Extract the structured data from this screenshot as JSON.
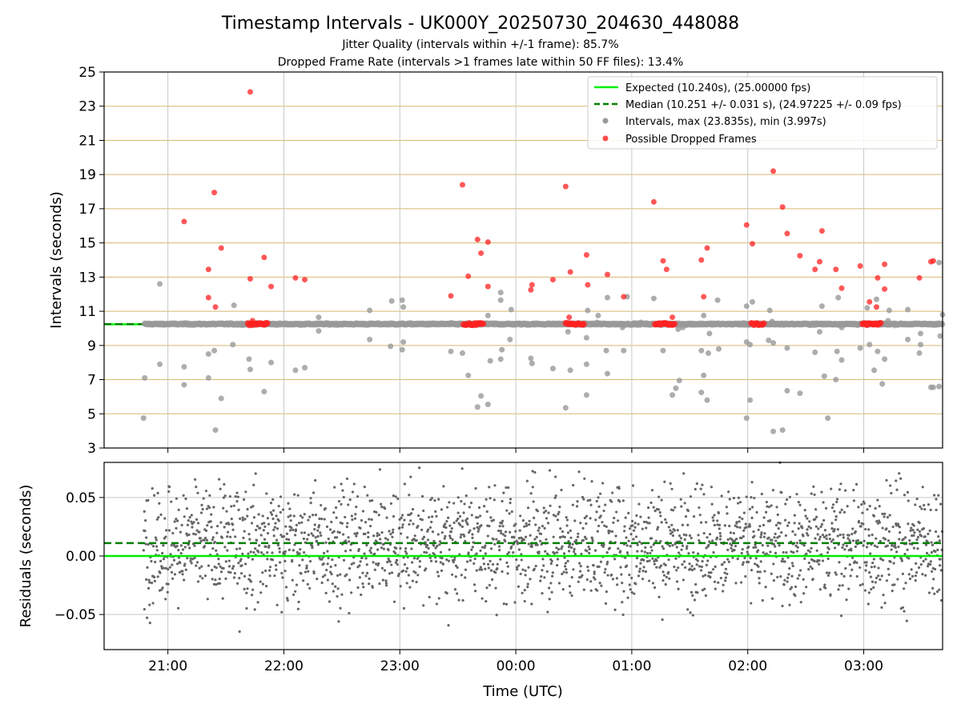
{
  "title": "Timestamp Intervals - UK000Y_20250730_204630_448088",
  "subtitle1": "Jitter Quality (intervals within +/-1 frame): 85.7%",
  "subtitle2": "Dropped Frame Rate (intervals >1 frames late within 50 FF files): 13.4%",
  "colors": {
    "expected": "#00ee00",
    "median": "#007f00",
    "intervals": "#999999",
    "dropped": "#ff2020",
    "residual": "#666666",
    "hgrid": "#d8b870",
    "vgrid": "#c8c8c8"
  },
  "chart_data": [
    {
      "type": "scatter",
      "ylabel": "Intervals (seconds)",
      "ylim": [
        3,
        25
      ],
      "yticks": [
        3,
        5,
        7,
        9,
        11,
        13,
        15,
        17,
        19,
        21,
        23,
        25
      ],
      "xlim_hours": [
        20.45,
        27.68
      ],
      "expected_interval": 10.24,
      "median_interval": 10.251,
      "legend_position": "top-right",
      "legend": [
        "Expected (10.240s), (25.00000 fps)",
        "Median (10.251 +/- 0.031 s), (24.97225 +/- 0.09 fps)",
        "Intervals, max (23.835s), min (3.997s)",
        "Possible Dropped Frames"
      ],
      "intervals_outliers": [
        [
          20.79,
          4.75
        ],
        [
          20.8,
          7.1
        ],
        [
          20.93,
          7.9
        ],
        [
          20.93,
          12.6
        ],
        [
          21.14,
          7.75
        ],
        [
          21.14,
          6.7
        ],
        [
          21.35,
          8.5
        ],
        [
          21.35,
          7.1
        ],
        [
          21.4,
          8.7
        ],
        [
          21.41,
          4.05
        ],
        [
          21.46,
          5.9
        ],
        [
          21.56,
          9.05
        ],
        [
          21.57,
          11.35
        ],
        [
          21.7,
          8.2
        ],
        [
          21.71,
          7.6
        ],
        [
          21.83,
          6.3
        ],
        [
          21.89,
          8.0
        ],
        [
          22.1,
          7.55
        ],
        [
          22.18,
          7.7
        ],
        [
          22.3,
          10.65
        ],
        [
          22.3,
          9.85
        ],
        [
          22.74,
          9.35
        ],
        [
          22.74,
          11.05
        ],
        [
          22.93,
          11.6
        ],
        [
          22.92,
          8.95
        ],
        [
          23.02,
          11.65
        ],
        [
          23.03,
          11.25
        ],
        [
          23.03,
          9.2
        ],
        [
          23.02,
          8.75
        ],
        [
          23.44,
          8.65
        ],
        [
          23.54,
          8.55
        ],
        [
          23.59,
          7.25
        ],
        [
          23.67,
          5.4
        ],
        [
          23.7,
          6.05
        ],
        [
          23.76,
          5.55
        ],
        [
          23.78,
          8.1
        ],
        [
          23.76,
          10.75
        ],
        [
          23.87,
          8.2
        ],
        [
          23.88,
          8.75
        ],
        [
          23.87,
          12.1
        ],
        [
          23.87,
          11.65
        ],
        [
          23.95,
          9.35
        ],
        [
          23.96,
          11.1
        ],
        [
          24.13,
          8.25
        ],
        [
          24.14,
          7.95
        ],
        [
          24.32,
          7.65
        ],
        [
          24.43,
          5.35
        ],
        [
          24.45,
          9.8
        ],
        [
          24.47,
          7.55
        ],
        [
          24.61,
          6.1
        ],
        [
          24.61,
          7.9
        ],
        [
          24.61,
          9.45
        ],
        [
          24.62,
          11.05
        ],
        [
          24.7,
          10.35
        ],
        [
          24.71,
          10.75
        ],
        [
          24.78,
          8.7
        ],
        [
          24.79,
          11.8
        ],
        [
          24.79,
          7.35
        ],
        [
          24.92,
          10.05
        ],
        [
          24.93,
          8.7
        ],
        [
          24.96,
          11.85
        ],
        [
          25.08,
          10.35
        ],
        [
          25.19,
          11.75
        ],
        [
          25.27,
          8.7
        ],
        [
          25.35,
          6.1
        ],
        [
          25.38,
          6.5
        ],
        [
          25.41,
          6.95
        ],
        [
          25.4,
          9.95
        ],
        [
          25.44,
          10.05
        ],
        [
          25.48,
          10.2
        ],
        [
          25.6,
          8.7
        ],
        [
          25.6,
          6.25
        ],
        [
          25.62,
          7.25
        ],
        [
          25.62,
          10.75
        ],
        [
          25.65,
          5.8
        ],
        [
          25.66,
          8.55
        ],
        [
          25.67,
          9.7
        ],
        [
          25.74,
          11.65
        ],
        [
          25.75,
          8.8
        ],
        [
          25.99,
          4.75
        ],
        [
          25.99,
          9.2
        ],
        [
          25.99,
          11.3
        ],
        [
          26.02,
          9.05
        ],
        [
          26.02,
          5.8
        ],
        [
          26.04,
          11.55
        ],
        [
          26.18,
          9.3
        ],
        [
          26.19,
          11.05
        ],
        [
          26.21,
          10.4
        ],
        [
          26.22,
          3.97
        ],
        [
          26.22,
          9.15
        ],
        [
          26.3,
          4.05
        ],
        [
          26.34,
          8.85
        ],
        [
          26.34,
          6.35
        ],
        [
          26.45,
          6.2
        ],
        [
          26.58,
          8.6
        ],
        [
          26.62,
          9.8
        ],
        [
          26.64,
          11.3
        ],
        [
          26.65,
          10.25
        ],
        [
          26.66,
          7.2
        ],
        [
          26.69,
          4.75
        ],
        [
          26.76,
          7.0
        ],
        [
          26.77,
          8.65
        ],
        [
          26.78,
          11.8
        ],
        [
          26.81,
          10.05
        ],
        [
          26.81,
          8.15
        ],
        [
          26.97,
          8.85
        ],
        [
          27.05,
          9.05
        ],
        [
          27.03,
          11.2
        ],
        [
          27.11,
          11.7
        ],
        [
          27.09,
          7.55
        ],
        [
          27.12,
          8.65
        ],
        [
          27.16,
          6.75
        ],
        [
          27.18,
          8.2
        ],
        [
          27.22,
          11.05
        ],
        [
          27.21,
          10.45
        ],
        [
          27.38,
          9.35
        ],
        [
          27.38,
          11.1
        ],
        [
          27.48,
          8.55
        ],
        [
          27.49,
          9.05
        ],
        [
          27.49,
          9.7
        ],
        [
          27.58,
          6.55
        ],
        [
          27.6,
          6.55
        ],
        [
          27.65,
          6.6
        ],
        [
          27.66,
          9.55
        ],
        [
          27.68,
          10.8
        ],
        [
          27.65,
          13.85
        ]
      ],
      "dropped_frames": [
        [
          21.14,
          16.25
        ],
        [
          21.35,
          13.45
        ],
        [
          21.35,
          11.8
        ],
        [
          21.4,
          17.95
        ],
        [
          21.41,
          11.25
        ],
        [
          21.46,
          14.7
        ],
        [
          21.71,
          23.835
        ],
        [
          21.71,
          12.9
        ],
        [
          21.83,
          14.15
        ],
        [
          21.89,
          12.45
        ],
        [
          22.1,
          12.95
        ],
        [
          22.18,
          12.85
        ],
        [
          23.44,
          11.9
        ],
        [
          23.54,
          18.4
        ],
        [
          23.59,
          13.05
        ],
        [
          23.67,
          15.2
        ],
        [
          23.7,
          14.4
        ],
        [
          23.76,
          15.05
        ],
        [
          23.76,
          12.45
        ],
        [
          24.13,
          12.25
        ],
        [
          24.14,
          12.55
        ],
        [
          24.32,
          12.85
        ],
        [
          24.43,
          18.3
        ],
        [
          24.47,
          13.3
        ],
        [
          24.62,
          12.55
        ],
        [
          24.61,
          14.3
        ],
        [
          24.79,
          13.15
        ],
        [
          24.93,
          11.85
        ],
        [
          25.19,
          17.4
        ],
        [
          25.27,
          13.95
        ],
        [
          25.3,
          13.45
        ],
        [
          25.35,
          10.65
        ],
        [
          25.6,
          14.0
        ],
        [
          25.62,
          11.85
        ],
        [
          25.65,
          14.7
        ],
        [
          25.99,
          16.05
        ],
        [
          26.04,
          14.95
        ],
        [
          26.22,
          19.2
        ],
        [
          26.3,
          17.1
        ],
        [
          26.34,
          15.55
        ],
        [
          26.45,
          14.25
        ],
        [
          26.58,
          13.45
        ],
        [
          26.62,
          13.9
        ],
        [
          26.64,
          15.7
        ],
        [
          26.76,
          13.45
        ],
        [
          26.81,
          12.35
        ],
        [
          26.97,
          13.65
        ],
        [
          27.05,
          11.55
        ],
        [
          27.11,
          11.25
        ],
        [
          27.12,
          12.95
        ],
        [
          27.18,
          13.75
        ],
        [
          27.18,
          12.3
        ],
        [
          27.48,
          12.95
        ],
        [
          27.6,
          13.95
        ],
        [
          27.58,
          13.9
        ],
        [
          21.73,
          10.45
        ],
        [
          24.46,
          10.65
        ]
      ],
      "dropped_bands": [
        [
          21.69,
          21.86
        ],
        [
          23.55,
          23.72
        ],
        [
          24.43,
          24.59
        ],
        [
          25.2,
          25.37
        ],
        [
          26.03,
          26.15
        ],
        [
          26.99,
          27.15
        ]
      ]
    },
    {
      "type": "scatter",
      "xlabel": "Time (UTC)",
      "ylabel": "Residuals (seconds)",
      "ylim": [
        -0.08,
        0.08
      ],
      "yticks": [
        0.05,
        0.0,
        -0.05
      ],
      "ytick_labels": [
        "0.05",
        "0.00",
        "−0.05"
      ],
      "xticks_hours": [
        21,
        22,
        23,
        24,
        25,
        26,
        27
      ],
      "xtick_labels": [
        "21:00",
        "22:00",
        "23:00",
        "00:00",
        "01:00",
        "02:00",
        "03:00"
      ],
      "expected_residual": 0.0,
      "median_residual": 0.011,
      "residual_std": 0.025,
      "residual_count": 2200
    }
  ]
}
